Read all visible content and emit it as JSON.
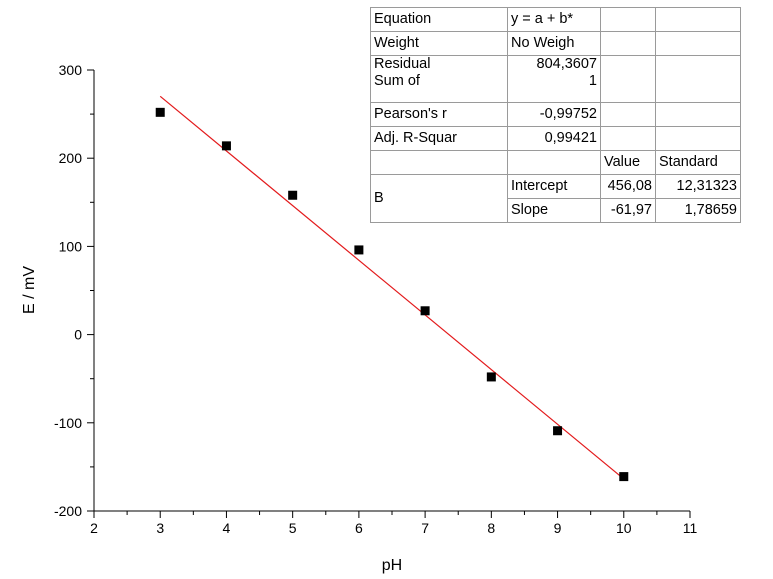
{
  "chart_data": {
    "type": "scatter",
    "xlabel": "pH",
    "ylabel": "E / mV",
    "xlim": [
      2,
      11
    ],
    "ylim": [
      -200,
      300
    ],
    "xticks": [
      2,
      3,
      4,
      5,
      6,
      7,
      8,
      9,
      10,
      11
    ],
    "yticks": [
      -200,
      -100,
      0,
      100,
      200,
      300
    ],
    "grid": false,
    "legend": "none",
    "points": [
      {
        "x": 3,
        "y": 252
      },
      {
        "x": 4,
        "y": 214
      },
      {
        "x": 5,
        "y": 158
      },
      {
        "x": 6,
        "y": 96
      },
      {
        "x": 7,
        "y": 27
      },
      {
        "x": 8,
        "y": -48
      },
      {
        "x": 9,
        "y": -109
      },
      {
        "x": 10,
        "y": -161
      }
    ],
    "fit_line": {
      "intercept": 456.08,
      "slope": -61.97,
      "x_range": [
        3,
        10
      ]
    },
    "marker_color": "#000000",
    "fit_color": "#e31a1c"
  },
  "fit_table": {
    "equation_label": "Equation",
    "equation_value": "y = a + b*",
    "weight_label": "Weight",
    "weight_value": "No Weigh",
    "rss_label_1": "Residual",
    "rss_label_2": "Sum of",
    "rss_value_1": "804,3607",
    "rss_value_2": "1",
    "pearson_label": "Pearson's r",
    "pearson_value": "-0,99752",
    "adjr_label": "Adj. R-Squar",
    "adjr_value": "0,99421",
    "value_header": "Value",
    "stderr_header": "Standard",
    "group_label": "B",
    "intercept_label": "Intercept",
    "intercept_value": "456,08",
    "intercept_err": "12,31323",
    "slope_label": "Slope",
    "slope_value": "-61,97",
    "slope_err": "1,78659"
  }
}
